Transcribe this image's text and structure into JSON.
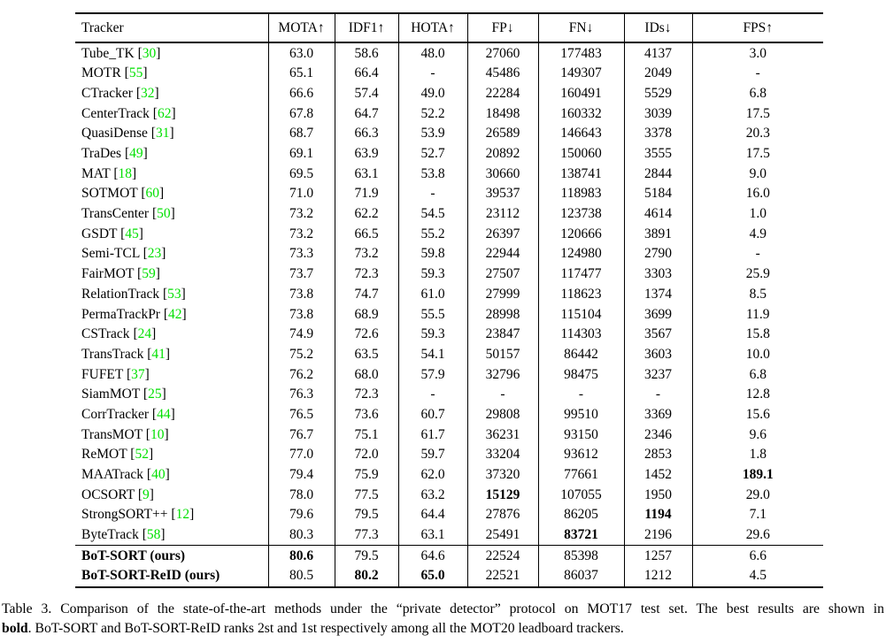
{
  "colors": {
    "citation_green": "#00e000"
  },
  "table": {
    "headers": [
      "Tracker",
      "MOTA↑",
      "IDF1↑",
      "HOTA↑",
      "FP↓",
      "FN↓",
      "IDs↓",
      "FPS↑"
    ],
    "rows": [
      {
        "tracker": "Tube_TK",
        "cite": "30",
        "bold_name": false,
        "group": "main",
        "values": [
          "63.0",
          "58.6",
          "48.0",
          "27060",
          "177483",
          "4137",
          "3.0"
        ],
        "bold": []
      },
      {
        "tracker": "MOTR",
        "cite": "55",
        "bold_name": false,
        "group": "main",
        "values": [
          "65.1",
          "66.4",
          "-",
          "45486",
          "149307",
          "2049",
          "-"
        ],
        "bold": []
      },
      {
        "tracker": "CTracker",
        "cite": "32",
        "bold_name": false,
        "group": "main",
        "values": [
          "66.6",
          "57.4",
          "49.0",
          "22284",
          "160491",
          "5529",
          "6.8"
        ],
        "bold": []
      },
      {
        "tracker": "CenterTrack",
        "cite": "62",
        "bold_name": false,
        "group": "main",
        "values": [
          "67.8",
          "64.7",
          "52.2",
          "18498",
          "160332",
          "3039",
          "17.5"
        ],
        "bold": []
      },
      {
        "tracker": "QuasiDense",
        "cite": "31",
        "bold_name": false,
        "group": "main",
        "values": [
          "68.7",
          "66.3",
          "53.9",
          "26589",
          "146643",
          "3378",
          "20.3"
        ],
        "bold": []
      },
      {
        "tracker": "TraDes",
        "cite": "49",
        "bold_name": false,
        "group": "main",
        "values": [
          "69.1",
          "63.9",
          "52.7",
          "20892",
          "150060",
          "3555",
          "17.5"
        ],
        "bold": []
      },
      {
        "tracker": "MAT",
        "cite": "18",
        "bold_name": false,
        "group": "main",
        "values": [
          "69.5",
          "63.1",
          "53.8",
          "30660",
          "138741",
          "2844",
          "9.0"
        ],
        "bold": []
      },
      {
        "tracker": "SOTMOT",
        "cite": "60",
        "bold_name": false,
        "group": "main",
        "values": [
          "71.0",
          "71.9",
          "-",
          "39537",
          "118983",
          "5184",
          "16.0"
        ],
        "bold": []
      },
      {
        "tracker": "TransCenter",
        "cite": "50",
        "bold_name": false,
        "group": "main",
        "values": [
          "73.2",
          "62.2",
          "54.5",
          "23112",
          "123738",
          "4614",
          "1.0"
        ],
        "bold": []
      },
      {
        "tracker": "GSDT",
        "cite": "45",
        "bold_name": false,
        "group": "main",
        "values": [
          "73.2",
          "66.5",
          "55.2",
          "26397",
          "120666",
          "3891",
          "4.9"
        ],
        "bold": []
      },
      {
        "tracker": "Semi-TCL",
        "cite": "23",
        "bold_name": false,
        "group": "main",
        "values": [
          "73.3",
          "73.2",
          "59.8",
          "22944",
          "124980",
          "2790",
          "-"
        ],
        "bold": []
      },
      {
        "tracker": "FairMOT",
        "cite": "59",
        "bold_name": false,
        "group": "main",
        "values": [
          "73.7",
          "72.3",
          "59.3",
          "27507",
          "117477",
          "3303",
          "25.9"
        ],
        "bold": []
      },
      {
        "tracker": "RelationTrack",
        "cite": "53",
        "bold_name": false,
        "group": "main",
        "values": [
          "73.8",
          "74.7",
          "61.0",
          "27999",
          "118623",
          "1374",
          "8.5"
        ],
        "bold": []
      },
      {
        "tracker": "PermaTrackPr",
        "cite": "42",
        "bold_name": false,
        "group": "main",
        "values": [
          "73.8",
          "68.9",
          "55.5",
          "28998",
          "115104",
          "3699",
          "11.9"
        ],
        "bold": []
      },
      {
        "tracker": "CSTrack",
        "cite": "24",
        "bold_name": false,
        "group": "main",
        "values": [
          "74.9",
          "72.6",
          "59.3",
          "23847",
          "114303",
          "3567",
          "15.8"
        ],
        "bold": []
      },
      {
        "tracker": "TransTrack",
        "cite": "41",
        "bold_name": false,
        "group": "main",
        "values": [
          "75.2",
          "63.5",
          "54.1",
          "50157",
          "86442",
          "3603",
          "10.0"
        ],
        "bold": []
      },
      {
        "tracker": "FUFET",
        "cite": "37",
        "bold_name": false,
        "group": "main",
        "values": [
          "76.2",
          "68.0",
          "57.9",
          "32796",
          "98475",
          "3237",
          "6.8"
        ],
        "bold": []
      },
      {
        "tracker": "SiamMOT",
        "cite": "25",
        "bold_name": false,
        "group": "main",
        "values": [
          "76.3",
          "72.3",
          "-",
          "-",
          "-",
          "-",
          "12.8"
        ],
        "bold": []
      },
      {
        "tracker": "CorrTracker",
        "cite": "44",
        "bold_name": false,
        "group": "main",
        "values": [
          "76.5",
          "73.6",
          "60.7",
          "29808",
          "99510",
          "3369",
          "15.6"
        ],
        "bold": []
      },
      {
        "tracker": "TransMOT",
        "cite": "10",
        "bold_name": false,
        "group": "main",
        "values": [
          "76.7",
          "75.1",
          "61.7",
          "36231",
          "93150",
          "2346",
          "9.6"
        ],
        "bold": []
      },
      {
        "tracker": "ReMOT",
        "cite": "52",
        "bold_name": false,
        "group": "main",
        "values": [
          "77.0",
          "72.0",
          "59.7",
          "33204",
          "93612",
          "2853",
          "1.8"
        ],
        "bold": []
      },
      {
        "tracker": "MAATrack",
        "cite": "40",
        "bold_name": false,
        "group": "main",
        "values": [
          "79.4",
          "75.9",
          "62.0",
          "37320",
          "77661",
          "1452",
          "189.1"
        ],
        "bold": [
          6
        ]
      },
      {
        "tracker": "OCSORT",
        "cite": "9",
        "bold_name": false,
        "group": "main",
        "values": [
          "78.0",
          "77.5",
          "63.2",
          "15129",
          "107055",
          "1950",
          "29.0"
        ],
        "bold": [
          3
        ]
      },
      {
        "tracker": "StrongSORT++",
        "cite": "12",
        "bold_name": false,
        "group": "main",
        "values": [
          "79.6",
          "79.5",
          "64.4",
          "27876",
          "86205",
          "1194",
          "7.1"
        ],
        "bold": [
          5
        ]
      },
      {
        "tracker": "ByteTrack",
        "cite": "58",
        "bold_name": false,
        "group": "main",
        "values": [
          "80.3",
          "77.3",
          "63.1",
          "25491",
          "83721",
          "2196",
          "29.6"
        ],
        "bold": [
          4
        ]
      },
      {
        "tracker": "BoT-SORT (ours)",
        "cite": null,
        "bold_name": true,
        "group": "ours",
        "values": [
          "80.6",
          "79.5",
          "64.6",
          "22524",
          "85398",
          "1257",
          "6.6"
        ],
        "bold": [
          0
        ]
      },
      {
        "tracker": "BoT-SORT-ReID (ours)",
        "cite": null,
        "bold_name": true,
        "group": "ours",
        "values": [
          "80.5",
          "80.2",
          "65.0",
          "22521",
          "86037",
          "1212",
          "4.5"
        ],
        "bold": [
          1,
          2
        ]
      }
    ]
  },
  "caption": {
    "line1": "Table 3. Comparison of the state-of-the-art methods under the “private detector” protocol on MOT17 test set. The best results are shown in",
    "line2_bold": "bold",
    "line2_rest": ". BoT-SORT and BoT-SORT-ReID ranks 2st and 1st respectively among all the MOT20 leadboard trackers."
  }
}
